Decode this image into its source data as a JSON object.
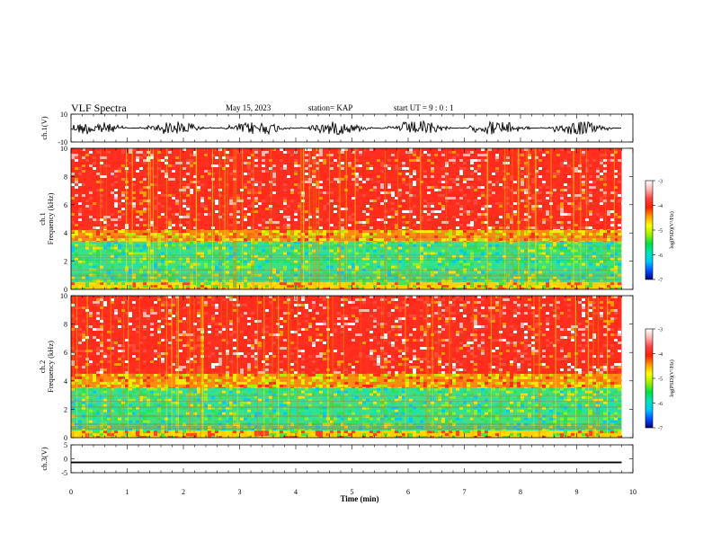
{
  "header": {
    "title": "VLF Spectra",
    "date": "May 15, 2023",
    "station": "station= KAP",
    "start_ut": "start UT =  9 : 0 : 1"
  },
  "chart_data": [
    {
      "type": "line",
      "name": "ch1-waveform",
      "ylabel": "ch.1(V)",
      "ylim": [
        -10,
        10
      ],
      "yticks": [
        "10",
        "-10"
      ],
      "xlim": [
        0,
        10
      ],
      "data_end_min": 9.8,
      "trace_center_v": 0,
      "trace_amplitude_v": 5
    },
    {
      "type": "heatmap",
      "name": "ch1-spectrogram",
      "ylabel": "ch.1 Frequency (kHz)",
      "ylim": [
        0,
        10
      ],
      "yticks": [
        "0",
        "2",
        "4",
        "6",
        "8",
        "10"
      ],
      "xlim": [
        0,
        10
      ],
      "data_end_min": 9.8,
      "bands_khz": [
        {
          "from": 0,
          "to": 0.5,
          "level": "mixed"
        },
        {
          "from": 0.5,
          "to": 3.4,
          "level": "low"
        },
        {
          "from": 3.4,
          "to": 4.2,
          "level": "mid"
        },
        {
          "from": 4.2,
          "to": 10,
          "level": "high"
        }
      ],
      "colorbar": {
        "label": "log(PSD)(V²/Hz)",
        "range": [
          -7,
          -3
        ],
        "ticks": [
          "-3",
          "-4",
          "-5",
          "-6",
          "-7"
        ],
        "colors": [
          "#000080",
          "#0050ff",
          "#00c8ff",
          "#00e6b4",
          "#00e040",
          "#a0f000",
          "#ffff00",
          "#ffa000",
          "#ff2000",
          "#ff4040",
          "#ffb0b0",
          "#ffffff"
        ]
      }
    },
    {
      "type": "heatmap",
      "name": "ch2-spectrogram",
      "ylabel": "ch.2 Frequency (kHz)",
      "ylim": [
        0,
        10
      ],
      "yticks": [
        "0",
        "2",
        "4",
        "6",
        "8",
        "10"
      ],
      "xlim": [
        0,
        10
      ],
      "data_end_min": 9.8,
      "bands_khz": [
        {
          "from": 0,
          "to": 0.5,
          "level": "mixed"
        },
        {
          "from": 0.5,
          "to": 3.5,
          "level": "low"
        },
        {
          "from": 3.5,
          "to": 4.5,
          "level": "mid"
        },
        {
          "from": 4.5,
          "to": 10,
          "level": "high"
        }
      ],
      "colorbar": {
        "label": "log(PSD)(V²/Hz)",
        "range": [
          -7,
          -3
        ],
        "ticks": [
          "-3",
          "-4",
          "-5",
          "-6",
          "-7"
        ],
        "colors": [
          "#000080",
          "#0050ff",
          "#00c8ff",
          "#00e6b4",
          "#00e040",
          "#a0f000",
          "#ffff00",
          "#ffa000",
          "#ff2000",
          "#ff4040",
          "#ffb0b0",
          "#ffffff"
        ]
      }
    },
    {
      "type": "line",
      "name": "ch3-waveform",
      "ylabel": "ch.3(V)",
      "ylim": [
        -5,
        5
      ],
      "yticks": [
        "5",
        "0",
        "-5"
      ],
      "xlim": [
        0,
        10
      ],
      "data_end_min": 9.8,
      "trace_center_v": -1.3,
      "trace_amplitude_v": 0.3
    }
  ],
  "xaxis": {
    "label": "Time (min)",
    "ticks": [
      "0",
      "1",
      "2",
      "3",
      "4",
      "5",
      "6",
      "7",
      "8",
      "9",
      "10"
    ]
  }
}
